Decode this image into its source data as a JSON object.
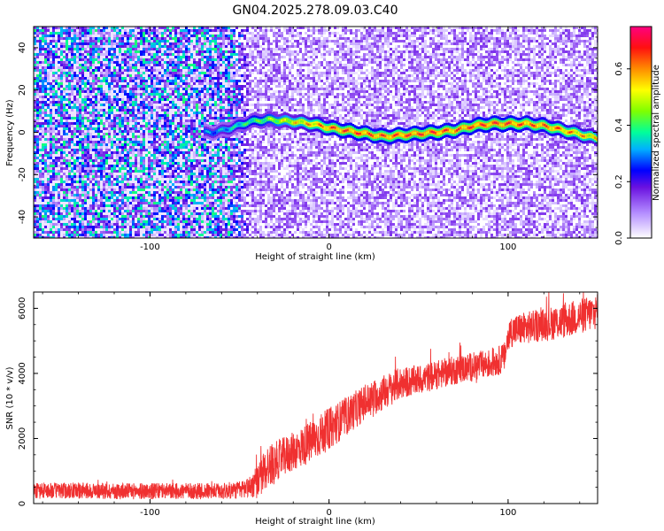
{
  "title": "GN04.2025.278.09.03.C40",
  "chart_data": [
    {
      "type": "heatmap",
      "xlabel": "Height of straight line (km)",
      "ylabel": "Frequency (Hz)",
      "xlim": [
        -165,
        150
      ],
      "ylim": [
        -50,
        50
      ],
      "xticks": [
        -100,
        0,
        100
      ],
      "yticks": [
        -40,
        -20,
        0,
        20,
        40
      ],
      "colorbar": {
        "label": "Normalized spectral amplitude",
        "range": [
          0,
          0.75
        ],
        "ticks": [
          0.0,
          0.2,
          0.4,
          0.6
        ],
        "tick_labels": [
          "0.0",
          "0.2",
          "0.4",
          "0.6"
        ],
        "colors": [
          "#ffffff",
          "#8a2be2",
          "#0000ff",
          "#00c8ff",
          "#00ff7f",
          "#7fff00",
          "#ffff00",
          "#ff8000",
          "#ff0000",
          "#ff0080"
        ]
      },
      "signal_track": {
        "description_x": [
          -70,
          -65,
          -55,
          -45,
          -35,
          -20,
          -10,
          0,
          15,
          30,
          45,
          60,
          70,
          80,
          90,
          100,
          110,
          120,
          130,
          140,
          150
        ],
        "frequency_hz": [
          0,
          0,
          2,
          5,
          6,
          5,
          4,
          2,
          0,
          -2,
          -1,
          0,
          1,
          3,
          4,
          4,
          4,
          3,
          1,
          -1,
          -3
        ],
        "peak_amplitude": [
          0.35,
          0.35,
          0.4,
          0.45,
          0.5,
          0.6,
          0.65,
          0.7,
          0.72,
          0.7,
          0.72,
          0.72,
          0.7,
          0.72,
          0.72,
          0.72,
          0.7,
          0.7,
          0.68,
          0.65,
          0.6
        ]
      }
    },
    {
      "type": "line",
      "xlabel": "Height of straight line (km)",
      "ylabel": "SNR (10 * v/v)",
      "xlim": [
        -165,
        150
      ],
      "ylim": [
        0,
        6500
      ],
      "xticks": [
        -100,
        0,
        100
      ],
      "yticks": [
        0,
        2000,
        4000,
        6000
      ],
      "color": "#f03030",
      "series": [
        {
          "x": [
            -165,
            -140,
            -120,
            -100,
            -80,
            -60,
            -50,
            -45,
            -40,
            -35,
            -30,
            -20,
            -10,
            0,
            10,
            20,
            30,
            40,
            50,
            60,
            70,
            80,
            90,
            95,
            98,
            100,
            102,
            110,
            120,
            130,
            140,
            150
          ],
          "values": [
            400,
            400,
            380,
            380,
            380,
            380,
            420,
            500,
            650,
            1100,
            1300,
            1600,
            1900,
            2300,
            2700,
            3100,
            3400,
            3700,
            3800,
            3950,
            4100,
            4200,
            4300,
            4400,
            4500,
            5100,
            5300,
            5400,
            5500,
            5600,
            5750,
            5900
          ],
          "noise_amplitude": [
            250,
            250,
            250,
            250,
            250,
            250,
            280,
            320,
            500,
            700,
            600,
            600,
            650,
            650,
            600,
            550,
            550,
            500,
            450,
            450,
            450,
            450,
            450,
            450,
            450,
            500,
            500,
            500,
            500,
            550,
            550,
            550
          ]
        }
      ]
    }
  ]
}
